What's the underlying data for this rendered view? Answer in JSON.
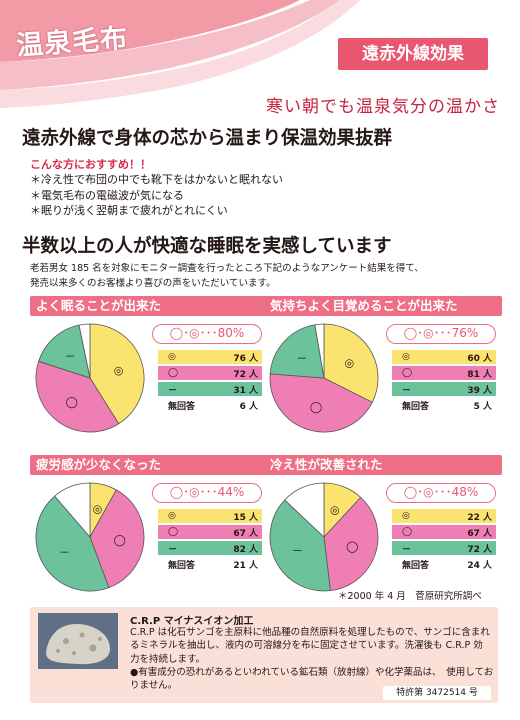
{
  "header": {
    "logo": "温泉毛布",
    "badge": "遠赤外線効果",
    "tagline": "寒い朝でも温泉気分の温かさ"
  },
  "headline1": "遠赤外線で身体の芯から温まり保温効果抜群",
  "recommend": {
    "title": "こんな方におすすめ！！",
    "items": [
      "＊冷え性で布団の中でも靴下をはかないと眠れない",
      "＊電気毛布の電磁波が気になる",
      "＊眠りが浅く翌朝まで疲れがとれにくい"
    ]
  },
  "headline2": "半数以上の人が快適な睡眠を実感しています",
  "intro": {
    "line1": "老若男女 185 名を対象にモニター調査を行ったところ下記のようなアンケート結果を得て、",
    "line2": "発売以来多くのお客様より喜びの声をいただいています。"
  },
  "colors": {
    "yellow": "#fbe36f",
    "pink": "#ef7eb4",
    "green": "#6cc29a",
    "white": "#ffffff",
    "accent": "#ee6e85"
  },
  "chart_data": [
    {
      "type": "pie",
      "title": "よく眠ることが出来た",
      "summary": "◯･◎･･･80%",
      "series": [
        {
          "symbol": "◎",
          "value": 76,
          "unit": "人"
        },
        {
          "symbol": "◯",
          "value": 72,
          "unit": "人"
        },
        {
          "symbol": "－",
          "value": 31,
          "unit": "人"
        },
        {
          "symbol": "無回答",
          "value": 6,
          "unit": "人"
        }
      ]
    },
    {
      "type": "pie",
      "title": "気持ちよく目覚めることが出来た",
      "summary": "◯･◎･･･76%",
      "series": [
        {
          "symbol": "◎",
          "value": 60,
          "unit": "人"
        },
        {
          "symbol": "◯",
          "value": 81,
          "unit": "人"
        },
        {
          "symbol": "－",
          "value": 39,
          "unit": "人"
        },
        {
          "symbol": "無回答",
          "value": 5,
          "unit": "人"
        }
      ]
    },
    {
      "type": "pie",
      "title": "疲労感が少なくなった",
      "summary": "◯･◎･･･44%",
      "series": [
        {
          "symbol": "◎",
          "value": 15,
          "unit": "人"
        },
        {
          "symbol": "◯",
          "value": 67,
          "unit": "人"
        },
        {
          "symbol": "－",
          "value": 82,
          "unit": "人"
        },
        {
          "symbol": "無回答",
          "value": 21,
          "unit": "人"
        }
      ]
    },
    {
      "type": "pie",
      "title": "冷え性が改善された",
      "summary": "◯･◎･･･48%",
      "series": [
        {
          "symbol": "◎",
          "value": 22,
          "unit": "人"
        },
        {
          "symbol": "◯",
          "value": 67,
          "unit": "人"
        },
        {
          "symbol": "－",
          "value": 72,
          "unit": "人"
        },
        {
          "symbol": "無回答",
          "value": 24,
          "unit": "人"
        }
      ]
    }
  ],
  "source": "＊2000 年 4 月　菅原研究所調べ",
  "crp": {
    "title": "C.R.P マイナスイオン加工",
    "body": "C.R.P は化石サンゴを主原料に他品種の自然原料を処理したもので、サンゴに含まれるミネラルを抽出し、液内の可溶線分を布に固定させています。洗濯後も C.R.P 効力を持続します。",
    "bullet": "●有害成分の恐れがあるといわれている鉱石類（放射線）や化学薬品は、　使用しておりません。",
    "patent": "特許第 3472514 号"
  }
}
